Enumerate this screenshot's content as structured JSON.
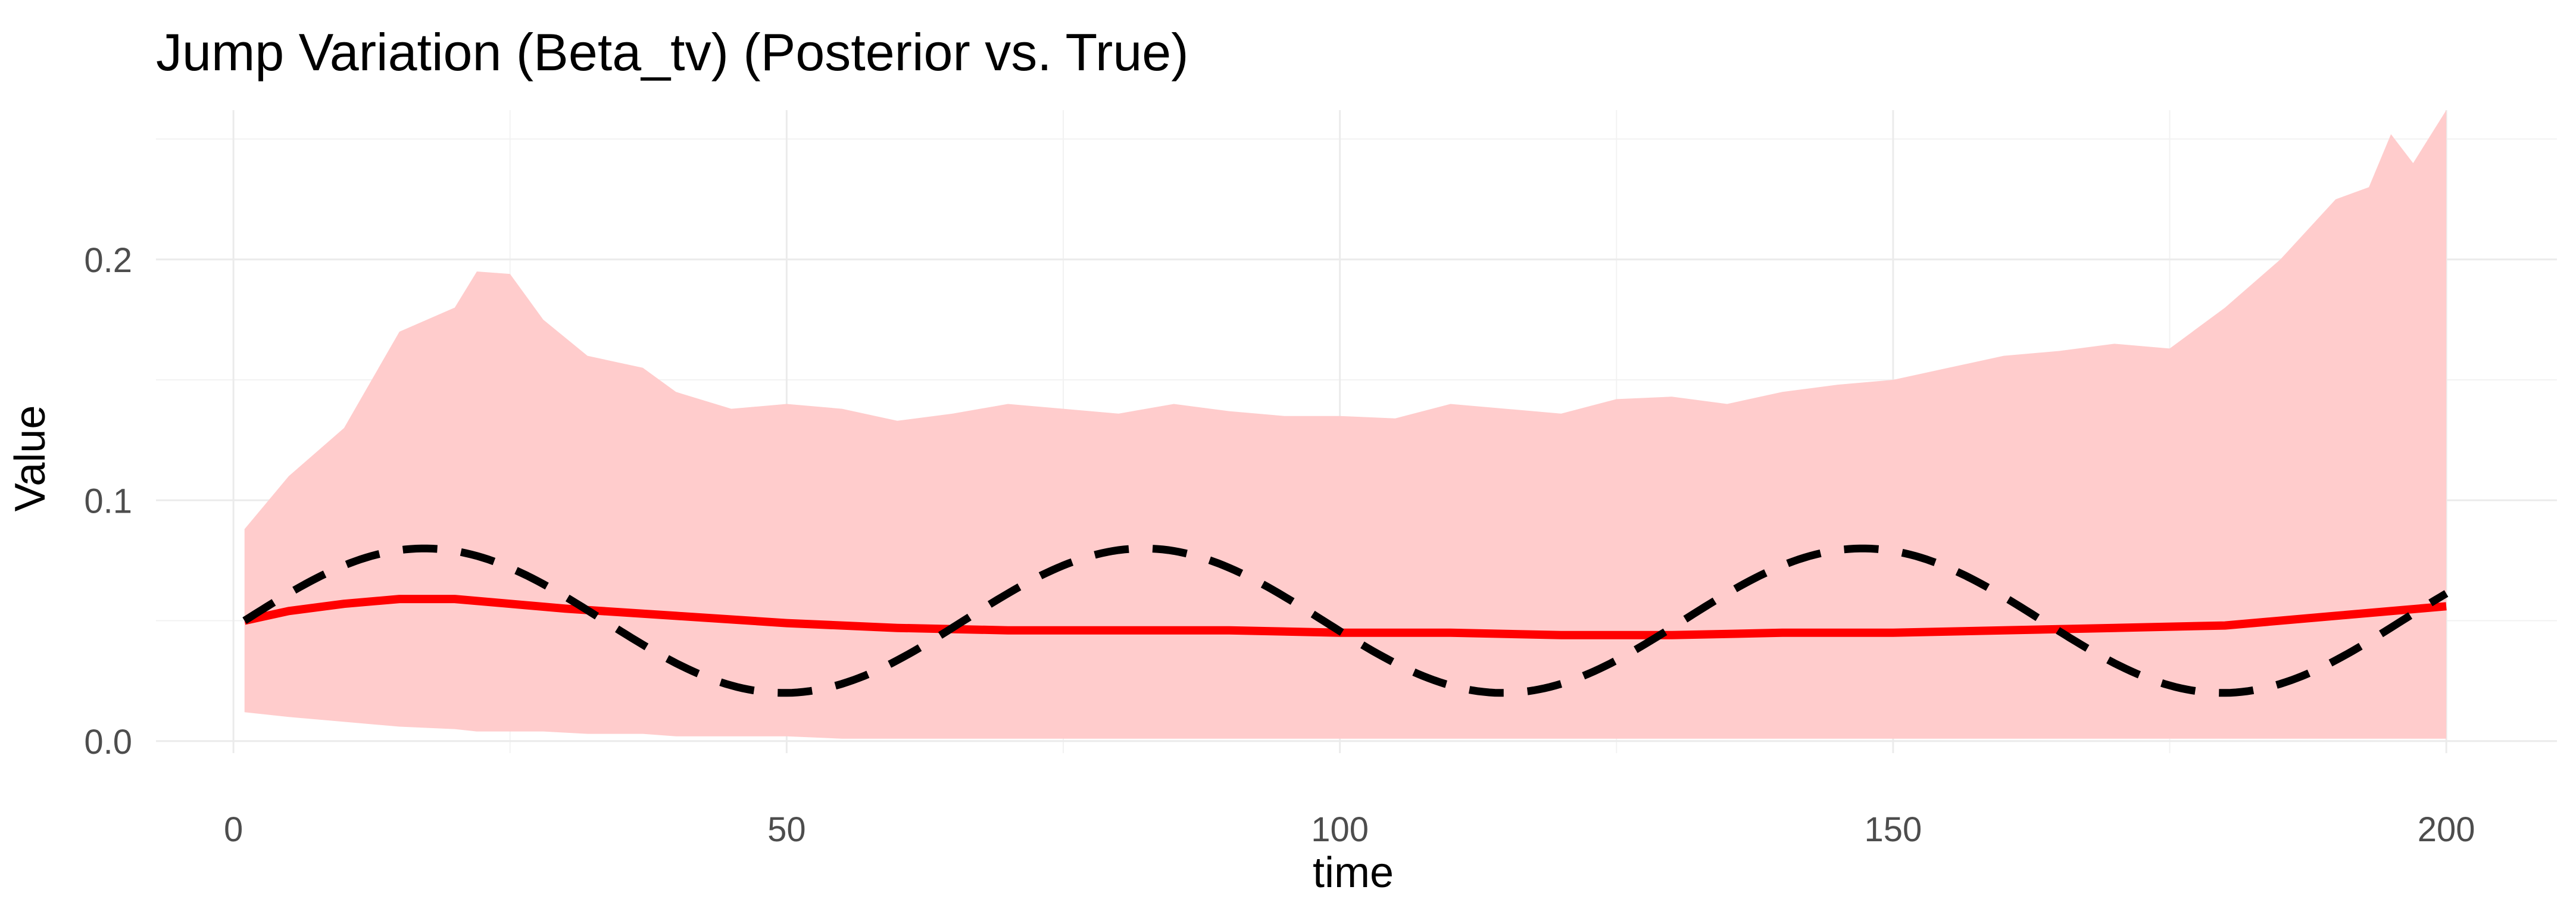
{
  "chart_data": {
    "type": "line",
    "title": "Jump Variation (Beta_tv) (Posterior vs. True)",
    "xlabel": "time",
    "ylabel": "Value",
    "xlim": [
      -7,
      210
    ],
    "ylim": [
      -0.005,
      0.262
    ],
    "xticks": [
      0,
      50,
      100,
      150,
      200
    ],
    "xtick_labels": [
      "0",
      "50",
      "100",
      "150",
      "200"
    ],
    "yticks": [
      0.0,
      0.1,
      0.2
    ],
    "ytick_labels": [
      "0.0",
      "0.1",
      "0.2"
    ],
    "grid": true,
    "legend": "none",
    "series": [
      {
        "kind": "ribbon",
        "color": "#ffcccc",
        "x": [
          1,
          5,
          10,
          15,
          20,
          22,
          25,
          28,
          32,
          37,
          40,
          45,
          50,
          55,
          60,
          65,
          70,
          75,
          80,
          85,
          90,
          95,
          100,
          105,
          110,
          115,
          120,
          125,
          130,
          135,
          140,
          145,
          150,
          155,
          160,
          165,
          170,
          175,
          180,
          185,
          190,
          193,
          195,
          197,
          200
        ],
        "lower": [
          0.012,
          0.01,
          0.008,
          0.006,
          0.005,
          0.004,
          0.004,
          0.004,
          0.003,
          0.003,
          0.002,
          0.002,
          0.002,
          0.001,
          0.001,
          0.001,
          0.001,
          0.001,
          0.001,
          0.001,
          0.001,
          0.001,
          0.001,
          0.001,
          0.001,
          0.001,
          0.001,
          0.001,
          0.001,
          0.001,
          0.001,
          0.001,
          0.001,
          0.001,
          0.001,
          0.001,
          0.001,
          0.001,
          0.001,
          0.001,
          0.001,
          0.001,
          0.001,
          0.001,
          0.001
        ],
        "upper": [
          0.088,
          0.11,
          0.13,
          0.17,
          0.18,
          0.195,
          0.194,
          0.175,
          0.16,
          0.155,
          0.145,
          0.138,
          0.14,
          0.138,
          0.133,
          0.136,
          0.14,
          0.138,
          0.136,
          0.14,
          0.137,
          0.135,
          0.135,
          0.134,
          0.14,
          0.138,
          0.136,
          0.142,
          0.143,
          0.14,
          0.145,
          0.148,
          0.15,
          0.155,
          0.16,
          0.162,
          0.165,
          0.163,
          0.18,
          0.2,
          0.225,
          0.23,
          0.252,
          0.24,
          0.262
        ]
      },
      {
        "kind": "line",
        "color": "#ff0000",
        "style": "solid",
        "x": [
          1,
          5,
          10,
          15,
          20,
          25,
          30,
          40,
          50,
          60,
          70,
          80,
          90,
          100,
          110,
          120,
          130,
          140,
          150,
          160,
          170,
          180,
          190,
          200
        ],
        "y": [
          0.05,
          0.054,
          0.057,
          0.059,
          0.059,
          0.057,
          0.055,
          0.052,
          0.049,
          0.047,
          0.046,
          0.046,
          0.046,
          0.045,
          0.045,
          0.044,
          0.044,
          0.045,
          0.045,
          0.046,
          0.047,
          0.048,
          0.052,
          0.056
        ]
      },
      {
        "kind": "line",
        "color": "#000000",
        "style": "dashed",
        "function": "0.05 + 0.03*sin(2*pi*(t-1)/65)",
        "t_range": [
          1,
          200
        ]
      }
    ]
  }
}
